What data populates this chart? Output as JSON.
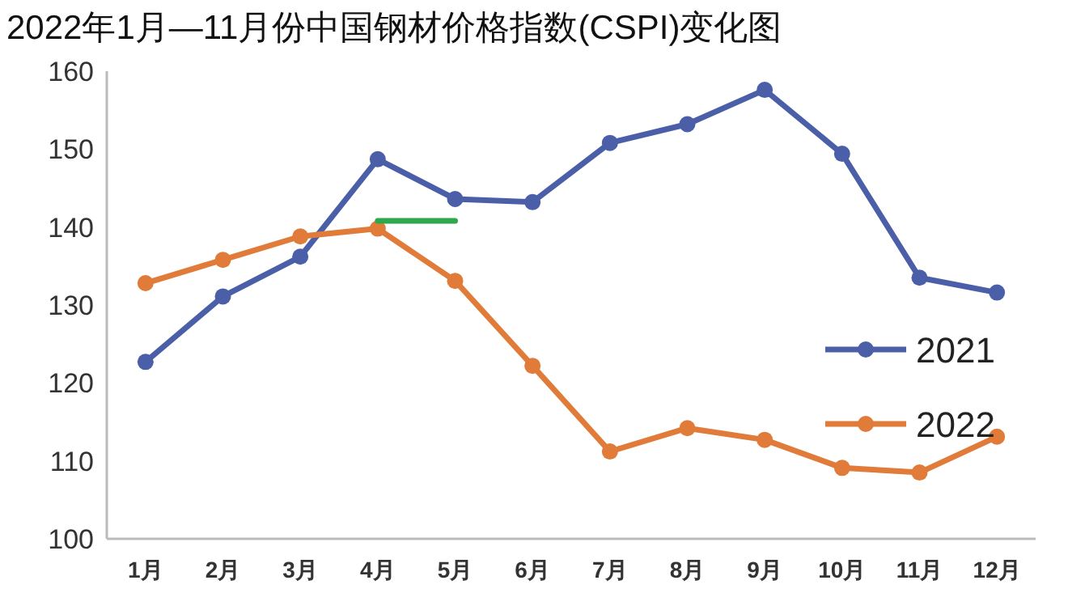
{
  "chart_data": {
    "type": "line",
    "title": "2022年1月—11月份中国钢材价格指数(CSPI)变化图",
    "categories": [
      "1月",
      "2月",
      "3月",
      "4月",
      "5月",
      "6月",
      "7月",
      "8月",
      "9月",
      "10月",
      "11月",
      "12月"
    ],
    "series": [
      {
        "name": "2021",
        "color": "#4a5fa8",
        "values": [
          122.7,
          131.1,
          136.2,
          148.7,
          143.6,
          143.2,
          150.8,
          153.2,
          157.6,
          149.4,
          133.5,
          131.6
        ]
      },
      {
        "name": "2022",
        "color": "#e07b39",
        "values": [
          132.8,
          135.8,
          138.8,
          139.8,
          133.1,
          122.2,
          111.2,
          114.2,
          112.7,
          109.1,
          108.5,
          113.1
        ]
      },
      {
        "color": "#2ea84a",
        "marker": "none",
        "values": [
          null,
          null,
          null,
          140.8,
          140.8,
          null,
          null,
          null,
          null,
          null,
          null,
          null
        ]
      }
    ],
    "ylim": [
      100,
      160
    ],
    "yticks": [
      100,
      110,
      120,
      130,
      140,
      150,
      160
    ],
    "marker": "circle",
    "legend": "right"
  }
}
